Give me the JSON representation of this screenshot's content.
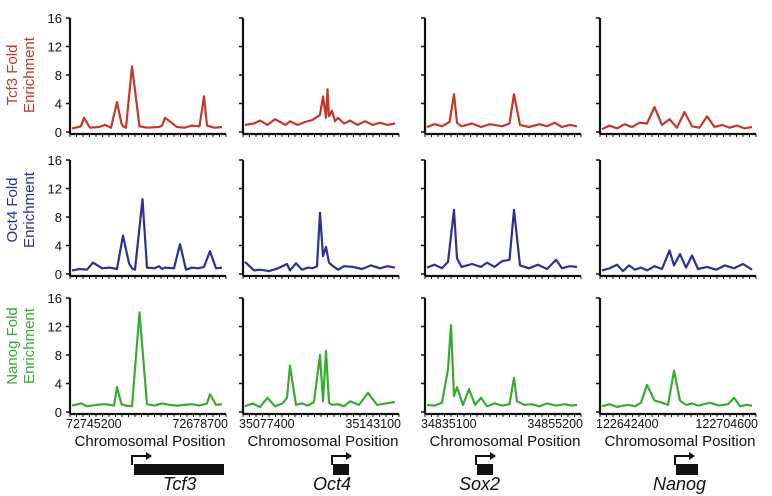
{
  "figure": {
    "rows": [
      {
        "label": "Tcf3 Fold Enrichment",
        "line1": "Tcf3 Fold",
        "line2": "Enrichment",
        "color": "#c0392b"
      },
      {
        "label": "Oct4 Fold Enrichment",
        "line1": "Oct4 Fold",
        "line2": "Enrichment",
        "color": "#2e3192"
      },
      {
        "label": "Nanog Fold Enrichment",
        "line1": "Nanog Fold",
        "line2": "Enrichment",
        "color": "#3aaa35"
      }
    ],
    "y_ticks": [
      "0",
      "4",
      "8",
      "12",
      "16"
    ],
    "x_axis_label": "Chromosomal Position",
    "columns": [
      {
        "gene": "Tcf3",
        "x_start": "72745200",
        "x_end": "72678700"
      },
      {
        "gene": "Oct4",
        "x_start": "35077400",
        "x_end": "35143100"
      },
      {
        "gene": "Sox2",
        "x_start": "34835100",
        "x_end": "34855200"
      },
      {
        "gene": "Nanog",
        "x_start": "122642400",
        "x_end": "122704600"
      }
    ]
  },
  "chart_data": {
    "type": "line",
    "ylim": [
      0,
      16
    ],
    "panels": [
      {
        "row": "Tcf3 Fold Enrichment",
        "gene": "Tcf3",
        "x": [
          0,
          0.06,
          0.08,
          0.12,
          0.18,
          0.22,
          0.26,
          0.3,
          0.33,
          0.34,
          0.36,
          0.4,
          0.45,
          0.5,
          0.58,
          0.6,
          0.62,
          0.7,
          0.75,
          0.8,
          0.85,
          0.88,
          0.9,
          0.95,
          1
        ],
        "y": [
          0.5,
          0.8,
          2,
          0.6,
          0.7,
          1,
          0.6,
          4.2,
          1.2,
          0.8,
          0.6,
          9.2,
          0.8,
          0.6,
          0.7,
          0.9,
          2,
          0.7,
          0.6,
          0.9,
          0.8,
          5,
          0.9,
          0.6,
          0.7
        ]
      },
      {
        "row": "Tcf3 Fold Enrichment",
        "gene": "Oct4",
        "x": [
          0,
          0.06,
          0.1,
          0.15,
          0.2,
          0.27,
          0.3,
          0.35,
          0.4,
          0.45,
          0.5,
          0.52,
          0.54,
          0.55,
          0.56,
          0.58,
          0.6,
          0.62,
          0.66,
          0.7,
          0.75,
          0.8,
          0.85,
          0.9,
          0.95,
          1
        ],
        "y": [
          1,
          1.2,
          1.6,
          1,
          1.8,
          1,
          1.5,
          1,
          1.4,
          1.7,
          2.4,
          5,
          2,
          6,
          2.2,
          3,
          1.5,
          2,
          1.2,
          1.6,
          1,
          1.5,
          1,
          1.3,
          1,
          1.2
        ]
      },
      {
        "row": "Tcf3 Fold Enrichment",
        "gene": "Sox2",
        "x": [
          0,
          0.05,
          0.1,
          0.15,
          0.18,
          0.2,
          0.23,
          0.3,
          0.36,
          0.42,
          0.5,
          0.55,
          0.58,
          0.62,
          0.68,
          0.75,
          0.8,
          0.85,
          0.9,
          0.95,
          1
        ],
        "y": [
          0.7,
          1.1,
          0.8,
          1.4,
          5.3,
          1.3,
          0.8,
          1.2,
          0.7,
          1.1,
          0.8,
          1.2,
          5.3,
          1,
          0.7,
          1.1,
          0.8,
          1.3,
          0.7,
          1,
          0.8
        ]
      },
      {
        "row": "Tcf3 Fold Enrichment",
        "gene": "Nanog",
        "x": [
          0,
          0.05,
          0.1,
          0.15,
          0.2,
          0.25,
          0.3,
          0.35,
          0.4,
          0.45,
          0.5,
          0.55,
          0.6,
          0.65,
          0.7,
          0.75,
          0.8,
          0.85,
          0.9,
          0.95,
          1
        ],
        "y": [
          0.4,
          0.9,
          0.5,
          1.1,
          0.7,
          1.3,
          1.2,
          3.5,
          1,
          1.8,
          0.6,
          2.8,
          0.8,
          0.6,
          2.2,
          0.7,
          1,
          0.6,
          0.9,
          0.5,
          0.7
        ]
      },
      {
        "row": "Oct4 Fold Enrichment",
        "gene": "Tcf3",
        "x": [
          0,
          0.05,
          0.1,
          0.14,
          0.2,
          0.25,
          0.3,
          0.34,
          0.38,
          0.4,
          0.42,
          0.47,
          0.5,
          0.55,
          0.58,
          0.6,
          0.62,
          0.68,
          0.72,
          0.76,
          0.8,
          0.84,
          0.88,
          0.92,
          0.96,
          1
        ],
        "y": [
          0.5,
          0.7,
          0.6,
          1.6,
          0.8,
          0.9,
          0.7,
          5.4,
          1.5,
          0.8,
          0.6,
          10.5,
          0.9,
          0.8,
          1.1,
          0.7,
          0.9,
          0.8,
          4.2,
          0.6,
          0.9,
          0.8,
          1,
          3.2,
          0.8,
          0.9
        ]
      },
      {
        "row": "Oct4 Fold Enrichment",
        "gene": "Oct4",
        "x": [
          0,
          0.06,
          0.1,
          0.16,
          0.22,
          0.28,
          0.3,
          0.34,
          0.38,
          0.42,
          0.45,
          0.48,
          0.5,
          0.52,
          0.54,
          0.56,
          0.58,
          0.62,
          0.66,
          0.72,
          0.78,
          0.84,
          0.9,
          0.95,
          1
        ],
        "y": [
          1.7,
          0.5,
          0.6,
          0.4,
          0.8,
          1.4,
          0.5,
          1.5,
          0.6,
          0.9,
          0.8,
          1.1,
          8.6,
          2.5,
          3.8,
          1.6,
          1.2,
          0.6,
          1.1,
          1,
          0.7,
          1.2,
          0.8,
          1.1,
          0.9
        ]
      },
      {
        "row": "Oct4 Fold Enrichment",
        "gene": "Sox2",
        "x": [
          0,
          0.05,
          0.1,
          0.14,
          0.18,
          0.2,
          0.23,
          0.3,
          0.36,
          0.4,
          0.45,
          0.5,
          0.55,
          0.58,
          0.62,
          0.68,
          0.74,
          0.8,
          0.86,
          0.9,
          0.95,
          1
        ],
        "y": [
          0.9,
          1.3,
          0.8,
          1.7,
          9,
          2.2,
          1,
          1.4,
          1,
          1.6,
          1,
          1.8,
          2,
          9,
          1.2,
          0.8,
          1.3,
          0.7,
          2,
          0.8,
          1.1,
          1
        ]
      },
      {
        "row": "Oct4 Fold Enrichment",
        "gene": "Nanog",
        "x": [
          0,
          0.05,
          0.1,
          0.14,
          0.18,
          0.22,
          0.26,
          0.3,
          0.35,
          0.4,
          0.45,
          0.48,
          0.52,
          0.56,
          0.6,
          0.64,
          0.7,
          0.76,
          0.82,
          0.88,
          0.94,
          1
        ],
        "y": [
          0.5,
          0.8,
          1.3,
          0.4,
          1.2,
          0.6,
          0.9,
          0.5,
          1.1,
          0.7,
          3.3,
          1.2,
          2.8,
          0.9,
          2.6,
          0.7,
          1,
          0.6,
          1.2,
          0.8,
          1.4,
          0.6
        ]
      },
      {
        "row": "Nanog Fold Enrichment",
        "gene": "Tcf3",
        "x": [
          0,
          0.06,
          0.1,
          0.16,
          0.22,
          0.28,
          0.3,
          0.33,
          0.36,
          0.4,
          0.45,
          0.5,
          0.55,
          0.6,
          0.65,
          0.7,
          0.75,
          0.8,
          0.85,
          0.9,
          0.92,
          0.96,
          1
        ],
        "y": [
          0.9,
          1.2,
          0.8,
          1,
          1.1,
          0.9,
          3.5,
          1.1,
          0.9,
          0.8,
          14,
          1.1,
          0.9,
          1.2,
          1,
          0.9,
          1,
          1.1,
          0.9,
          1.2,
          2.5,
          1,
          1.1
        ]
      },
      {
        "row": "Nanog Fold Enrichment",
        "gene": "Oct4",
        "x": [
          0,
          0.05,
          0.1,
          0.15,
          0.2,
          0.25,
          0.28,
          0.3,
          0.34,
          0.38,
          0.42,
          0.46,
          0.5,
          0.52,
          0.54,
          0.56,
          0.58,
          0.62,
          0.66,
          0.7,
          0.76,
          0.82,
          0.88,
          0.94,
          1
        ],
        "y": [
          0.8,
          1.2,
          0.7,
          2,
          0.8,
          1.2,
          2,
          6.5,
          1,
          1.2,
          0.9,
          1.4,
          8,
          1.5,
          8.6,
          1.3,
          1,
          1.1,
          0.8,
          1.5,
          1,
          2.7,
          1,
          1.2,
          1.4
        ]
      },
      {
        "row": "Nanog Fold Enrichment",
        "gene": "Sox2",
        "x": [
          0,
          0.05,
          0.1,
          0.14,
          0.16,
          0.18,
          0.2,
          0.24,
          0.28,
          0.32,
          0.36,
          0.4,
          0.45,
          0.5,
          0.55,
          0.58,
          0.6,
          0.65,
          0.7,
          0.75,
          0.8,
          0.86,
          0.92,
          0.96,
          1
        ],
        "y": [
          1,
          0.9,
          1.3,
          6,
          12.2,
          2.2,
          3.5,
          1,
          3.2,
          1,
          2,
          0.8,
          1.2,
          0.9,
          1.1,
          4.8,
          1.5,
          1,
          1.1,
          0.8,
          1.2,
          0.9,
          1.1,
          0.9,
          1
        ]
      },
      {
        "row": "Nanog Fold Enrichment",
        "gene": "Nanog",
        "x": [
          0,
          0.05,
          0.1,
          0.14,
          0.18,
          0.22,
          0.26,
          0.3,
          0.35,
          0.4,
          0.44,
          0.48,
          0.52,
          0.56,
          0.6,
          0.64,
          0.68,
          0.72,
          0.78,
          0.84,
          0.88,
          0.92,
          0.96,
          1
        ],
        "y": [
          0.8,
          1.1,
          0.7,
          0.9,
          1,
          0.8,
          1.3,
          3.8,
          1.6,
          1.3,
          1,
          5.8,
          1.6,
          1,
          1.2,
          0.9,
          1.1,
          1.3,
          0.9,
          1.1,
          2,
          0.8,
          1,
          0.9
        ]
      }
    ]
  },
  "genes_track": [
    {
      "gene": "Tcf3",
      "shape": "long-box"
    },
    {
      "gene": "Oct4",
      "shape": "short-box"
    },
    {
      "gene": "Sox2",
      "shape": "short-box"
    },
    {
      "gene": "Nanog",
      "shape": "short-box"
    }
  ]
}
